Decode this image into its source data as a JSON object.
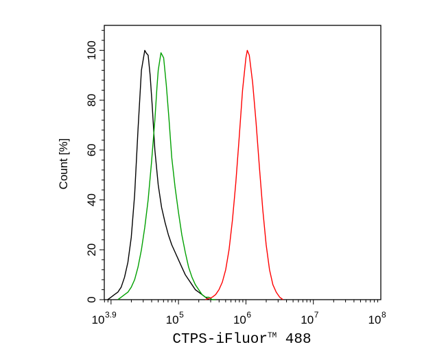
{
  "chart_data": {
    "type": "line",
    "title": "",
    "xlabel": "CTPS-iFluor™ 488",
    "xlabel_main": "CTPS-iFluor",
    "xlabel_tm": "TM",
    "xlabel_suffix": " 488",
    "ylabel": "Count [%]",
    "x_scale": "log",
    "xlim": [
      7943,
      100000000
    ],
    "ylim": [
      0,
      110
    ],
    "x_tick_labels": [
      {
        "value": 7943,
        "base": "10",
        "exp": "3.9"
      },
      {
        "value": 100000,
        "base": "10",
        "exp": "5"
      },
      {
        "value": 1000000,
        "base": "10",
        "exp": "6"
      },
      {
        "value": 10000000,
        "base": "10",
        "exp": "7"
      },
      {
        "value": 100000000,
        "base": "10",
        "exp": "8"
      }
    ],
    "y_ticks": [
      0,
      20,
      40,
      60,
      80,
      100
    ],
    "legend": "none",
    "grid": false,
    "series": [
      {
        "color": "#000000",
        "x": [
          8913,
          10000,
          11220,
          12589,
          14125,
          15849,
          17783,
          19953,
          22387,
          25119,
          28184,
          31623,
          33113,
          35481,
          38019,
          40738,
          44668,
          50119,
          56234,
          63096,
          70795,
          79433,
          89125,
          100000,
          112202,
          125893,
          141254,
          158489,
          177828,
          199526,
          223872,
          251189,
          281838
        ],
        "y": [
          0,
          1,
          2,
          3,
          5,
          9,
          15,
          25,
          42,
          68,
          92,
          100,
          99,
          98,
          90,
          78,
          60,
          46,
          37,
          31,
          26,
          22,
          19,
          16,
          13,
          10,
          8,
          6,
          4,
          3,
          2,
          1,
          0
        ]
      },
      {
        "color": "#00a000",
        "x": [
          12589,
          14125,
          15849,
          17783,
          19953,
          22387,
          25119,
          28184,
          31623,
          35481,
          39811,
          44668,
          47863,
          50119,
          54954,
          60256,
          66069,
          72444,
          79433,
          89125,
          100000,
          112202,
          125893,
          141254,
          158489,
          177828,
          199526,
          223872,
          251189,
          281838,
          316228,
          354813
        ],
        "y": [
          0,
          1,
          2,
          3,
          5,
          8,
          13,
          20,
          29,
          40,
          55,
          72,
          85,
          92,
          99,
          97,
          86,
          72,
          57,
          45,
          35,
          26,
          19,
          13,
          9,
          6,
          4,
          2,
          1,
          1,
          0,
          0
        ]
      },
      {
        "color": "#ff0000",
        "x": [
          251189,
          316228,
          354813,
          398107,
          446684,
          501187,
          562341,
          630957,
          707946,
          794328,
          891251,
          1000000,
          1047129,
          1122018,
          1258925,
          1412538,
          1584893,
          1778279,
          1995262,
          2238721,
          2511886,
          2818383,
          3162278,
          3548134
        ],
        "y": [
          0,
          1,
          2,
          4,
          7,
          12,
          20,
          32,
          47,
          65,
          84,
          97,
          100,
          98,
          87,
          71,
          53,
          36,
          22,
          12,
          6,
          3,
          1,
          0
        ]
      }
    ]
  }
}
